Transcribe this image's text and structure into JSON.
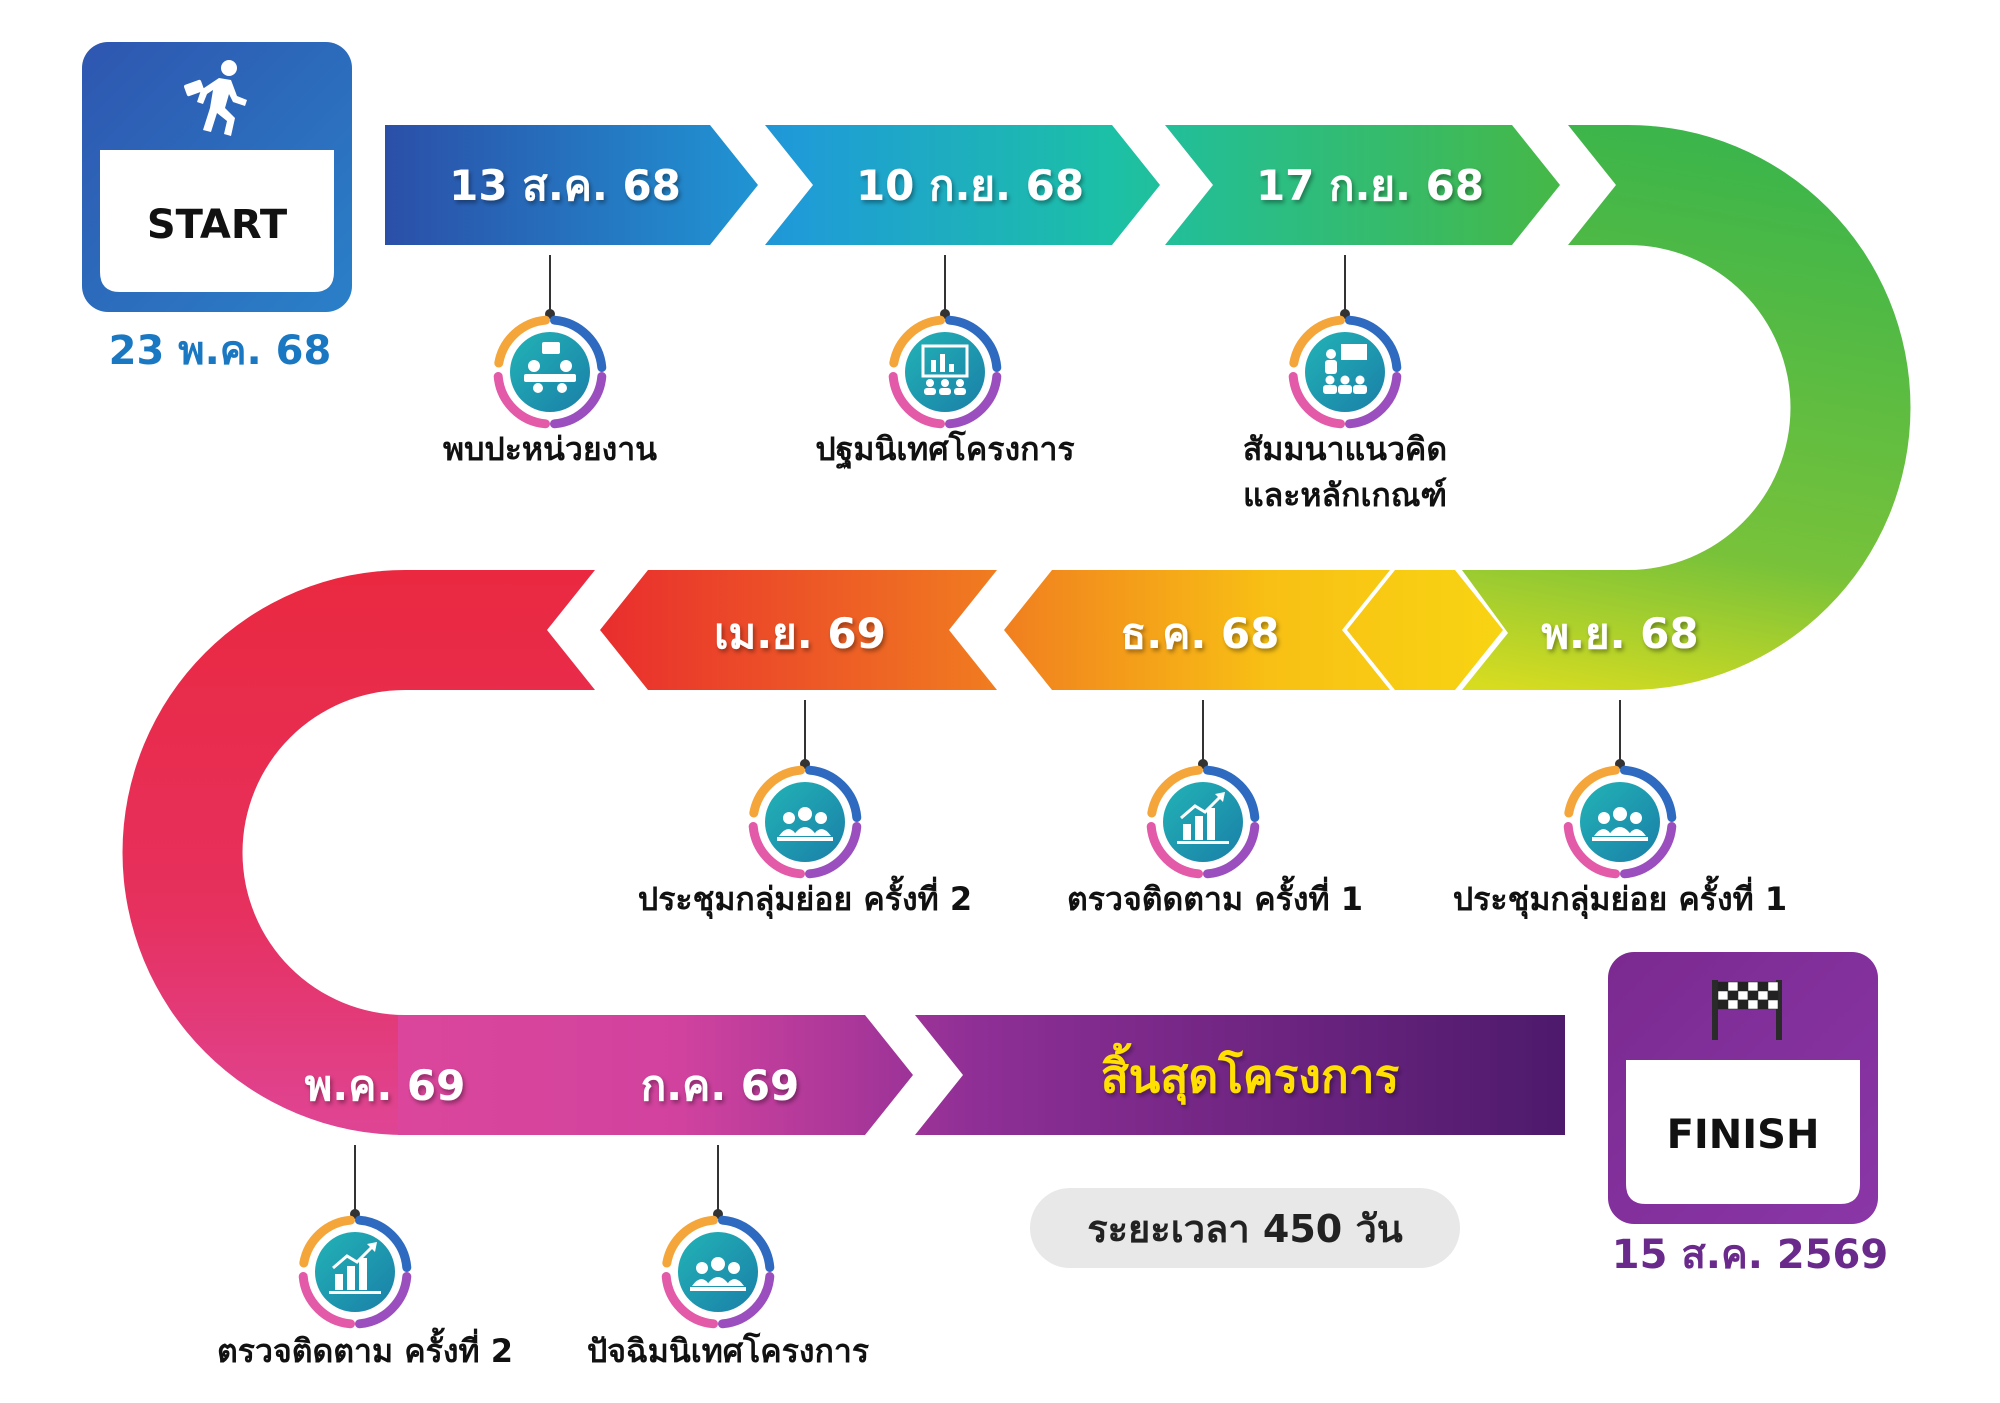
{
  "start": {
    "label": "START",
    "date": "23 พ.ค. 68"
  },
  "finish": {
    "label": "FINISH",
    "date": "15 ส.ค. 2569"
  },
  "end_label": "สิ้นสุดโครงการ",
  "duration": "ระยะเวลา 450 วัน",
  "colors": {
    "start_box": "#2f6fc0",
    "finish_box": "#7b2f9c",
    "end_label": "#ffe000"
  },
  "milestones": [
    {
      "date": "13 ส.ค. 68",
      "lines": [
        "พบปะหน่วยงาน"
      ],
      "icon": "meeting-table-icon"
    },
    {
      "date": "10 ก.ย. 68",
      "lines": [
        "ปฐมนิเทศโครงการ"
      ],
      "icon": "presentation-board-icon"
    },
    {
      "date": "17 ก.ย. 68",
      "lines": [
        "สัมมนาแนวคิด",
        "และหลักเกณฑ์"
      ],
      "icon": "seminar-icon"
    },
    {
      "date": "พ.ย. 68",
      "lines": [
        "ประชุมกลุ่มย่อย ครั้งที่ 1"
      ],
      "icon": "group-icon"
    },
    {
      "date": "ธ.ค. 68",
      "lines": [
        "ตรวจติดตาม ครั้งที่ 1"
      ],
      "icon": "chart-icon"
    },
    {
      "date": "เม.ย. 69",
      "lines": [
        "ประชุมกลุ่มย่อย ครั้งที่ 2"
      ],
      "icon": "group-icon"
    },
    {
      "date": "พ.ค. 69",
      "lines": [
        "ตรวจติดตาม ครั้งที่ 2"
      ],
      "icon": "chart-icon"
    },
    {
      "date": "ก.ค. 69",
      "lines": [
        "ปัจฉิมนิเทศโครงการ"
      ],
      "icon": "group-icon"
    }
  ]
}
